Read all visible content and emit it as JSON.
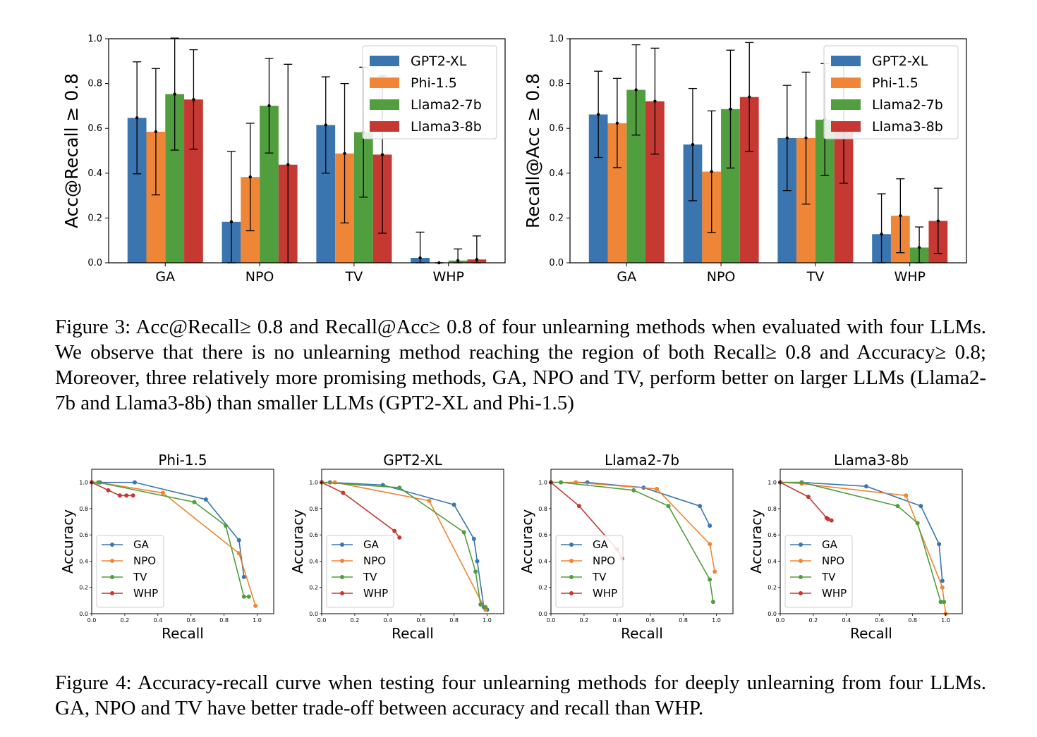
{
  "colors": {
    "GPT2-XL": "#3a75b0",
    "Phi-1.5": "#ef8536",
    "Llama2-7b": "#519e3e",
    "Llama3-8b": "#c53932",
    "GA": "#3a75b0",
    "NPO": "#ef8536",
    "TV": "#519e3e",
    "WHP": "#c53932"
  },
  "captions": {
    "figure3": "Figure 3: Acc@Recall≥ 0.8 and Recall@Acc≥ 0.8 of four unlearning methods when evaluated with four LLMs. We observe that there is no unlearning method reaching the region of both Recall≥ 0.8 and Accuracy≥ 0.8; Moreover, three relatively more promising methods, GA, NPO and TV, perform better on larger LLMs (Llama2-7b and Llama3-8b) than smaller LLMs (GPT2-XL and Phi-1.5)",
    "figure4": "Figure 4: Accuracy-recall curve when testing four unlearning methods for deeply unlearning from four LLMs. GA, NPO and TV have better trade-off between accuracy and recall than WHP."
  },
  "chart_data": [
    {
      "type": "bar",
      "title": "",
      "xlabel": "",
      "ylabel": "Acc@Recall ≥ 0.8",
      "ylim": [
        0,
        1.0
      ],
      "yticks": [
        "0.0",
        "0.2",
        "0.4",
        "0.6",
        "0.8",
        "1.0"
      ],
      "categories": [
        "GA",
        "NPO",
        "TV",
        "WHP"
      ],
      "legend_position": "top-right",
      "series": [
        {
          "name": "GPT2-XL",
          "values": [
            0.647,
            0.183,
            0.615,
            0.022
          ],
          "err_low": [
            0.397,
            0.0,
            0.4,
            0.0
          ],
          "err_high": [
            0.897,
            0.497,
            0.83,
            0.137
          ]
        },
        {
          "name": "Phi-1.5",
          "values": [
            0.585,
            0.383,
            0.488,
            0.0
          ],
          "err_low": [
            0.303,
            0.143,
            0.178,
            0.0
          ],
          "err_high": [
            0.867,
            0.623,
            0.8,
            0.0
          ]
        },
        {
          "name": "Llama2-7b",
          "values": [
            0.753,
            0.701,
            0.583,
            0.01
          ],
          "err_low": [
            0.503,
            0.49,
            0.293,
            0.0
          ],
          "err_high": [
            1.003,
            0.913,
            0.873,
            0.062
          ]
        },
        {
          "name": "Llama3-8b",
          "values": [
            0.729,
            0.438,
            0.483,
            0.015
          ],
          "err_low": [
            0.507,
            0.0,
            0.132,
            0.0
          ],
          "err_high": [
            0.951,
            0.886,
            0.834,
            0.12
          ]
        }
      ]
    },
    {
      "type": "bar",
      "title": "",
      "xlabel": "",
      "ylabel": "Recall@Acc ≥ 0.8",
      "ylim": [
        0,
        1.0
      ],
      "yticks": [
        "0.0",
        "0.2",
        "0.4",
        "0.6",
        "0.8",
        "1.0"
      ],
      "categories": [
        "GA",
        "NPO",
        "TV",
        "WHP"
      ],
      "legend_position": "top-right",
      "series": [
        {
          "name": "GPT2-XL",
          "values": [
            0.662,
            0.528,
            0.557,
            0.128
          ],
          "err_low": [
            0.47,
            0.277,
            0.322,
            0.0
          ],
          "err_high": [
            0.855,
            0.778,
            0.792,
            0.308
          ]
        },
        {
          "name": "Phi-1.5",
          "values": [
            0.623,
            0.407,
            0.557,
            0.21
          ],
          "err_low": [
            0.425,
            0.135,
            0.262,
            0.045
          ],
          "err_high": [
            0.823,
            0.678,
            0.851,
            0.375
          ]
        },
        {
          "name": "Llama2-7b",
          "values": [
            0.772,
            0.686,
            0.639,
            0.068
          ],
          "err_low": [
            0.57,
            0.423,
            0.39,
            0.0
          ],
          "err_high": [
            0.973,
            0.949,
            0.889,
            0.16
          ]
        },
        {
          "name": "Llama3-8b",
          "values": [
            0.721,
            0.74,
            0.622,
            0.187
          ],
          "err_low": [
            0.485,
            0.497,
            0.355,
            0.042
          ],
          "err_high": [
            0.958,
            0.983,
            0.889,
            0.333
          ]
        }
      ]
    },
    {
      "type": "line",
      "title": "Phi-1.5",
      "xlabel": "Recall",
      "ylabel": "Accuracy",
      "xlim": [
        0,
        1.1
      ],
      "ylim": [
        0,
        1.1
      ],
      "xticks": [
        "0.0",
        "0.2",
        "0.4",
        "0.6",
        "0.8",
        "1.0"
      ],
      "yticks": [
        "0.0",
        "0.2",
        "0.4",
        "0.6",
        "0.8",
        "1.0"
      ],
      "legend_position": "lower-left",
      "series": [
        {
          "name": "GA",
          "x": [
            0.0,
            0.05,
            0.26,
            0.69,
            0.89,
            0.92
          ],
          "y": [
            1.0,
            1.0,
            1.0,
            0.87,
            0.56,
            0.28
          ]
        },
        {
          "name": "NPO",
          "x": [
            0.0,
            0.04,
            0.43,
            0.89,
            0.99
          ],
          "y": [
            1.0,
            1.0,
            0.92,
            0.46,
            0.06
          ]
        },
        {
          "name": "TV",
          "x": [
            0.0,
            0.04,
            0.62,
            0.81,
            0.92,
            0.95
          ],
          "y": [
            1.0,
            1.0,
            0.85,
            0.67,
            0.13,
            0.13
          ]
        },
        {
          "name": "WHP",
          "x": [
            0.0,
            0.1,
            0.17,
            0.21,
            0.25
          ],
          "y": [
            1.0,
            0.94,
            0.9,
            0.9,
            0.9
          ]
        }
      ]
    },
    {
      "type": "line",
      "title": "GPT2-XL",
      "xlabel": "Recall",
      "ylabel": "Accuracy",
      "xlim": [
        0,
        1.1
      ],
      "ylim": [
        0,
        1.1
      ],
      "xticks": [
        "0.0",
        "0.2",
        "0.4",
        "0.6",
        "0.8",
        "1.0"
      ],
      "yticks": [
        "0.0",
        "0.2",
        "0.4",
        "0.6",
        "0.8",
        "1.0"
      ],
      "legend_position": "lower-left",
      "series": [
        {
          "name": "GA",
          "x": [
            0.0,
            0.05,
            0.37,
            0.8,
            0.92,
            0.94,
            0.98,
            1.0
          ],
          "y": [
            1.0,
            1.0,
            0.98,
            0.83,
            0.57,
            0.4,
            0.05,
            0.03
          ]
        },
        {
          "name": "NPO",
          "x": [
            0.0,
            0.08,
            0.65,
            0.99
          ],
          "y": [
            1.0,
            1.0,
            0.86,
            0.03
          ]
        },
        {
          "name": "TV",
          "x": [
            0.0,
            0.47,
            0.86,
            0.93,
            0.96,
            0.99
          ],
          "y": [
            1.0,
            0.96,
            0.62,
            0.32,
            0.07,
            0.05
          ]
        },
        {
          "name": "WHP",
          "x": [
            0.0,
            0.13,
            0.44,
            0.47
          ],
          "y": [
            1.0,
            0.92,
            0.63,
            0.58
          ]
        }
      ]
    },
    {
      "type": "line",
      "title": "Llama2-7b",
      "xlabel": "Recall",
      "ylabel": "Accuracy",
      "xlim": [
        0,
        1.1
      ],
      "ylim": [
        0,
        1.1
      ],
      "xticks": [
        "0.0",
        "0.2",
        "0.4",
        "0.6",
        "0.8",
        "1.0"
      ],
      "yticks": [
        "0.0",
        "0.2",
        "0.4",
        "0.6",
        "0.8",
        "1.0"
      ],
      "legend_position": "lower-left",
      "series": [
        {
          "name": "GA",
          "x": [
            0.0,
            0.06,
            0.22,
            0.56,
            0.9,
            0.96
          ],
          "y": [
            1.0,
            1.0,
            1.0,
            0.96,
            0.82,
            0.67
          ]
        },
        {
          "name": "NPO",
          "x": [
            0.0,
            0.15,
            0.64,
            0.96,
            0.99
          ],
          "y": [
            1.0,
            1.0,
            0.95,
            0.53,
            0.32
          ]
        },
        {
          "name": "TV",
          "x": [
            0.0,
            0.06,
            0.5,
            0.71,
            0.96,
            0.98
          ],
          "y": [
            1.0,
            1.0,
            0.94,
            0.82,
            0.26,
            0.09
          ]
        },
        {
          "name": "WHP",
          "x": [
            0.0,
            0.17,
            0.4,
            0.43
          ],
          "y": [
            1.0,
            0.82,
            0.49,
            0.42
          ]
        }
      ]
    },
    {
      "type": "line",
      "title": "Llama3-8b",
      "xlabel": "Recall",
      "ylabel": "Accuracy",
      "xlim": [
        0,
        1.1
      ],
      "ylim": [
        0,
        1.1
      ],
      "xticks": [
        "0.0",
        "0.2",
        "0.4",
        "0.6",
        "0.8",
        "1.0"
      ],
      "yticks": [
        "0.0",
        "0.2",
        "0.4",
        "0.6",
        "0.8",
        "1.0"
      ],
      "legend_position": "lower-left",
      "series": [
        {
          "name": "GA",
          "x": [
            0.0,
            0.13,
            0.52,
            0.85,
            0.96,
            0.98
          ],
          "y": [
            1.0,
            1.0,
            0.97,
            0.82,
            0.53,
            0.25
          ]
        },
        {
          "name": "NPO",
          "x": [
            0.0,
            0.13,
            0.76,
            0.98,
            1.0
          ],
          "y": [
            1.0,
            0.99,
            0.9,
            0.2,
            0.0
          ]
        },
        {
          "name": "TV",
          "x": [
            0.0,
            0.13,
            0.71,
            0.83,
            0.97,
            0.99
          ],
          "y": [
            1.0,
            1.0,
            0.82,
            0.69,
            0.09,
            0.09
          ]
        },
        {
          "name": "WHP",
          "x": [
            0.0,
            0.17,
            0.28,
            0.29,
            0.31
          ],
          "y": [
            1.0,
            0.89,
            0.73,
            0.72,
            0.71
          ]
        }
      ]
    }
  ]
}
